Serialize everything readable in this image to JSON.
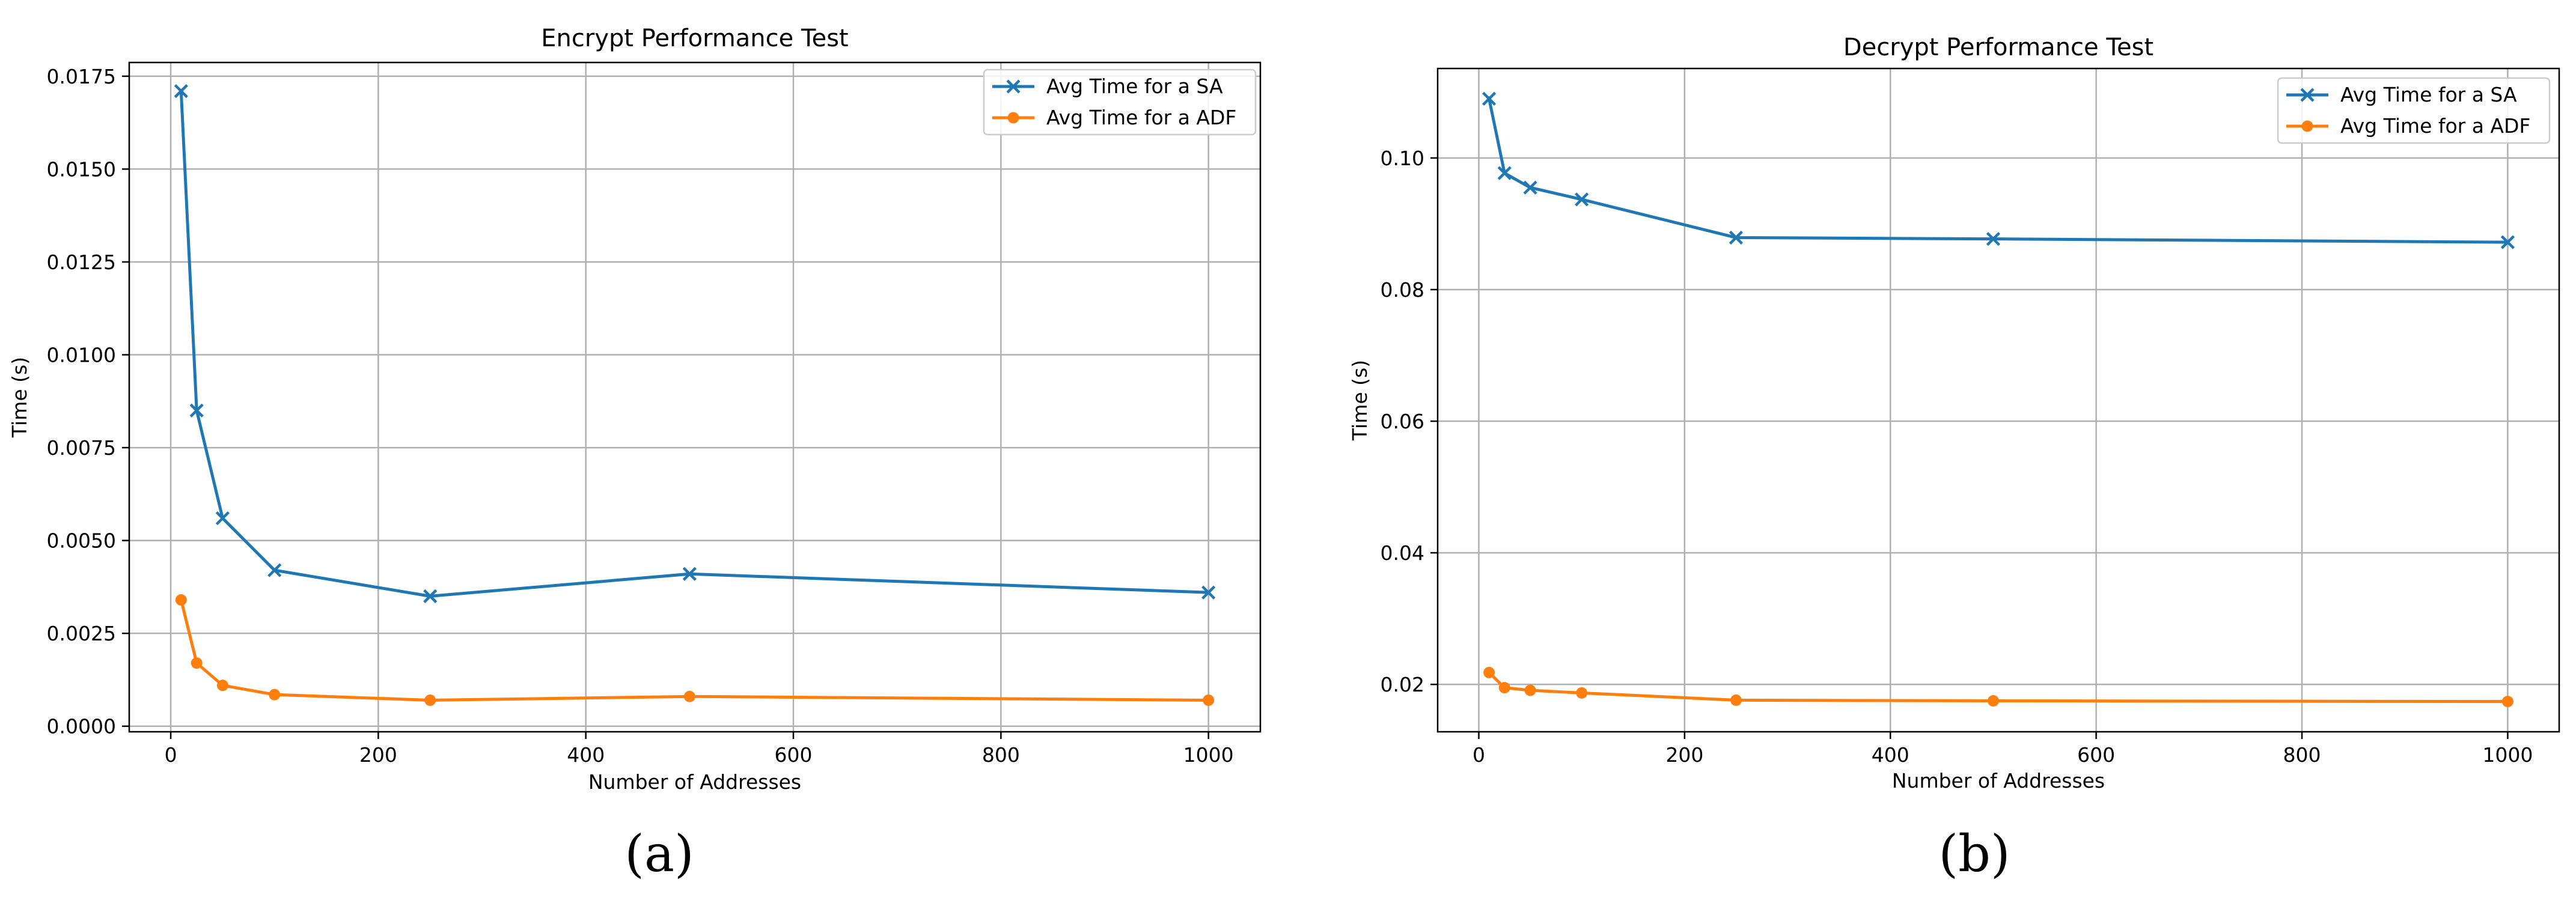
{
  "colors": {
    "sa": "#1f77b4",
    "adf": "#ff7f0e"
  },
  "chart_data": [
    {
      "panel": "(a)",
      "type": "line",
      "title": "Encrypt Performance Test",
      "xlabel": "Number of Addresses",
      "ylabel": "Time (s)",
      "xlim": [
        -40,
        1050
      ],
      "ylim": [
        -0.00015,
        0.01787
      ],
      "xticks": [
        0,
        200,
        400,
        600,
        800,
        1000
      ],
      "xtick_labels": [
        "0",
        "200",
        "400",
        "600",
        "800",
        "1000"
      ],
      "yticks": [
        0,
        0.0025,
        0.005,
        0.0075,
        0.01,
        0.0125,
        0.015,
        0.0175
      ],
      "ytick_labels": [
        "0.0000",
        "0.0025",
        "0.0050",
        "0.0075",
        "0.0100",
        "0.0125",
        "0.0150",
        "0.0175"
      ],
      "grid": true,
      "legend": "top-right",
      "x": [
        10,
        25,
        50,
        100,
        250,
        500,
        1000
      ],
      "series": [
        {
          "name": "Avg Time for a SA",
          "marker": "x",
          "color": "sa",
          "values": [
            0.0171,
            0.0085,
            0.0056,
            0.0042,
            0.0035,
            0.0041,
            0.0036
          ]
        },
        {
          "name": "Avg Time for a ADF",
          "marker": "o",
          "color": "adf",
          "values": [
            0.0034,
            0.0017,
            0.0011,
            0.00085,
            0.0007,
            0.0008,
            0.0007
          ]
        }
      ]
    },
    {
      "panel": "(b)",
      "type": "line",
      "title": "Decrypt Performance Test",
      "xlabel": "Number of Addresses",
      "ylabel": "Time (s)",
      "xlim": [
        -40,
        1050
      ],
      "ylim": [
        0.0128,
        0.1136
      ],
      "xticks": [
        0,
        200,
        400,
        600,
        800,
        1000
      ],
      "xtick_labels": [
        "0",
        "200",
        "400",
        "600",
        "800",
        "1000"
      ],
      "yticks": [
        0.02,
        0.04,
        0.06,
        0.08,
        0.1
      ],
      "ytick_labels": [
        "0.02",
        "0.04",
        "0.06",
        "0.08",
        "0.10"
      ],
      "grid": true,
      "legend": "top-right",
      "x": [
        10,
        25,
        50,
        100,
        250,
        500,
        1000
      ],
      "series": [
        {
          "name": "Avg Time for a SA",
          "marker": "x",
          "color": "sa",
          "values": [
            0.109,
            0.0977,
            0.0955,
            0.0937,
            0.0879,
            0.0877,
            0.0872
          ]
        },
        {
          "name": "Avg Time for a ADF",
          "marker": "o",
          "color": "adf",
          "values": [
            0.0218,
            0.0195,
            0.0191,
            0.0187,
            0.0176,
            0.0175,
            0.0174
          ]
        }
      ]
    }
  ]
}
